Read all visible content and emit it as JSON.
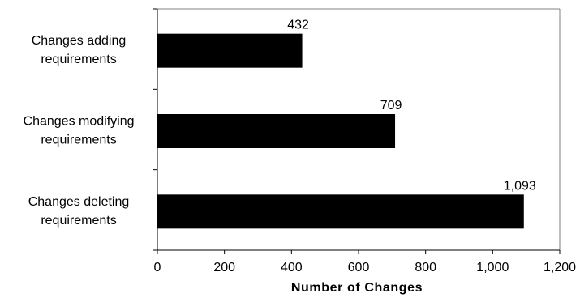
{
  "chart_data": {
    "type": "bar",
    "orientation": "horizontal",
    "categories": [
      [
        "Changes adding",
        "requirements"
      ],
      [
        "Changes modifying",
        "requirements"
      ],
      [
        "Changes deleting",
        "requirements"
      ]
    ],
    "values": [
      432,
      709,
      1093
    ],
    "data_labels": [
      "432",
      "709",
      "1,093"
    ],
    "xlabel": "Number of Changes",
    "xlim": [
      0,
      1200
    ],
    "xticks": [
      0,
      200,
      400,
      600,
      800,
      1000,
      1200
    ],
    "xtick_labels": [
      "0",
      "200",
      "400",
      "600",
      "800",
      "1,000",
      "1,200"
    ],
    "grid": false,
    "legend": "none",
    "bar_color": "#000000"
  }
}
